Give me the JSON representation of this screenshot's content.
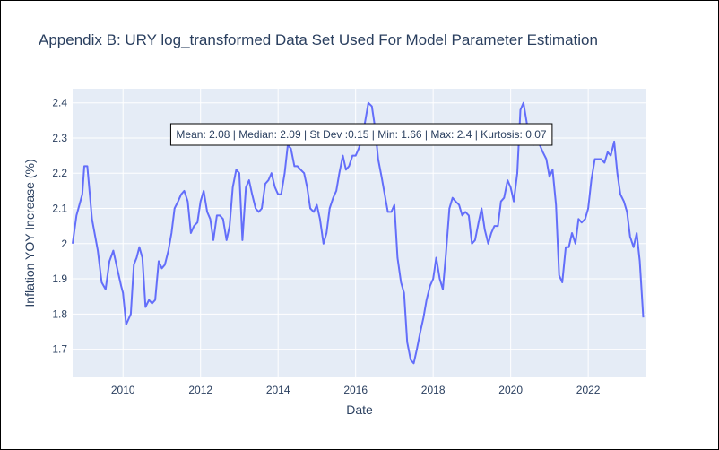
{
  "chart_data": {
    "type": "line",
    "title": "Appendix B: URY log_transformed Data Set Used For Model Parameter Estimation",
    "xlabel": "Date",
    "ylabel": "Inflation YOY Increase (%)",
    "xlim": [
      2008.7,
      2023.5
    ],
    "ylim": [
      1.62,
      2.44
    ],
    "grid": true,
    "line_color": "#636efa",
    "plot_bgcolor": "#e5ecf6",
    "x_ticks": [
      "2010",
      "2012",
      "2014",
      "2016",
      "2018",
      "2020",
      "2022"
    ],
    "x_tick_values": [
      2010,
      2012,
      2014,
      2016,
      2018,
      2020,
      2022
    ],
    "y_ticks": [
      "1.7",
      "1.8",
      "1.9",
      "2",
      "2.1",
      "2.2",
      "2.3",
      "2.4"
    ],
    "y_tick_values": [
      1.7,
      1.8,
      1.9,
      2.0,
      2.1,
      2.2,
      2.3,
      2.4
    ],
    "annotation": "Mean: 2.08 | Median: 2.09 | St Dev :0.15 | Min: 1.66 | Max: 2.4 | Kurtosis: 0.07",
    "series": [
      {
        "x": [
          2008.7,
          2008.8,
          2008.95,
          2009.0,
          2009.08,
          2009.2,
          2009.35,
          2009.45,
          2009.55,
          2009.65,
          2009.75,
          2009.85,
          2009.95,
          2010.0,
          2010.08,
          2010.2,
          2010.28,
          2010.35,
          2010.42,
          2010.5,
          2010.58,
          2010.67,
          2010.75,
          2010.83,
          2010.92,
          2011.0,
          2011.08,
          2011.17,
          2011.25,
          2011.33,
          2011.42,
          2011.5,
          2011.58,
          2011.67,
          2011.75,
          2011.83,
          2011.92,
          2012.0,
          2012.08,
          2012.17,
          2012.25,
          2012.33,
          2012.42,
          2012.5,
          2012.58,
          2012.67,
          2012.75,
          2012.83,
          2012.92,
          2013.0,
          2013.08,
          2013.17,
          2013.25,
          2013.33,
          2013.42,
          2013.5,
          2013.58,
          2013.67,
          2013.75,
          2013.83,
          2013.92,
          2014.0,
          2014.08,
          2014.17,
          2014.25,
          2014.33,
          2014.42,
          2014.5,
          2014.58,
          2014.67,
          2014.75,
          2014.83,
          2014.92,
          2015.0,
          2015.08,
          2015.17,
          2015.25,
          2015.33,
          2015.42,
          2015.5,
          2015.58,
          2015.67,
          2015.75,
          2015.83,
          2015.92,
          2016.0,
          2016.08,
          2016.17,
          2016.25,
          2016.33,
          2016.42,
          2016.5,
          2016.58,
          2016.67,
          2016.75,
          2016.83,
          2016.92,
          2017.0,
          2017.08,
          2017.17,
          2017.25,
          2017.33,
          2017.42,
          2017.5,
          2017.58,
          2017.67,
          2017.75,
          2017.83,
          2017.92,
          2018.0,
          2018.08,
          2018.17,
          2018.25,
          2018.33,
          2018.42,
          2018.5,
          2018.58,
          2018.67,
          2018.75,
          2018.83,
          2018.92,
          2019.0,
          2019.08,
          2019.17,
          2019.25,
          2019.33,
          2019.42,
          2019.5,
          2019.58,
          2019.67,
          2019.75,
          2019.83,
          2019.92,
          2020.0,
          2020.08,
          2020.17,
          2020.25,
          2020.33,
          2020.42,
          2020.5,
          2020.58,
          2020.67,
          2020.75,
          2020.83,
          2020.92,
          2021.0,
          2021.08,
          2021.17,
          2021.25,
          2021.33,
          2021.42,
          2021.5,
          2021.58,
          2021.67,
          2021.75,
          2021.83,
          2021.92,
          2022.0,
          2022.08,
          2022.17,
          2022.25,
          2022.33,
          2022.42,
          2022.5,
          2022.58,
          2022.67,
          2022.75,
          2022.83,
          2022.92,
          2023.0,
          2023.08,
          2023.17,
          2023.25,
          2023.33,
          2023.42
        ],
        "y": [
          2.0,
          2.08,
          2.14,
          2.22,
          2.22,
          2.07,
          1.98,
          1.89,
          1.87,
          1.95,
          1.98,
          1.93,
          1.88,
          1.86,
          1.77,
          1.8,
          1.94,
          1.96,
          1.99,
          1.96,
          1.82,
          1.84,
          1.83,
          1.84,
          1.95,
          1.93,
          1.94,
          1.98,
          2.03,
          2.1,
          2.12,
          2.14,
          2.15,
          2.12,
          2.03,
          2.05,
          2.06,
          2.12,
          2.15,
          2.09,
          2.07,
          2.01,
          2.08,
          2.08,
          2.07,
          2.01,
          2.05,
          2.16,
          2.21,
          2.2,
          2.01,
          2.16,
          2.18,
          2.14,
          2.1,
          2.09,
          2.1,
          2.17,
          2.18,
          2.2,
          2.16,
          2.14,
          2.14,
          2.2,
          2.28,
          2.27,
          2.22,
          2.22,
          2.21,
          2.2,
          2.16,
          2.1,
          2.09,
          2.11,
          2.07,
          2.0,
          2.03,
          2.1,
          2.13,
          2.15,
          2.2,
          2.25,
          2.21,
          2.22,
          2.25,
          2.25,
          2.27,
          2.3,
          2.35,
          2.4,
          2.39,
          2.33,
          2.24,
          2.19,
          2.14,
          2.09,
          2.09,
          2.11,
          1.96,
          1.89,
          1.86,
          1.72,
          1.67,
          1.66,
          1.7,
          1.75,
          1.79,
          1.84,
          1.88,
          1.9,
          1.96,
          1.9,
          1.87,
          1.97,
          2.1,
          2.13,
          2.12,
          2.11,
          2.08,
          2.09,
          2.08,
          2.0,
          2.01,
          2.06,
          2.1,
          2.04,
          2.0,
          2.03,
          2.05,
          2.05,
          2.12,
          2.13,
          2.18,
          2.16,
          2.12,
          2.2,
          2.38,
          2.4,
          2.34,
          2.3,
          2.28,
          2.3,
          2.28,
          2.26,
          2.24,
          2.19,
          2.21,
          2.11,
          1.91,
          1.89,
          1.99,
          1.99,
          2.03,
          2.0,
          2.07,
          2.06,
          2.07,
          2.1,
          2.18,
          2.24,
          2.24,
          2.24,
          2.23,
          2.26,
          2.25,
          2.29,
          2.2,
          2.14,
          2.12,
          2.09,
          2.02,
          1.99,
          2.03,
          1.95,
          1.79
        ]
      }
    ]
  }
}
